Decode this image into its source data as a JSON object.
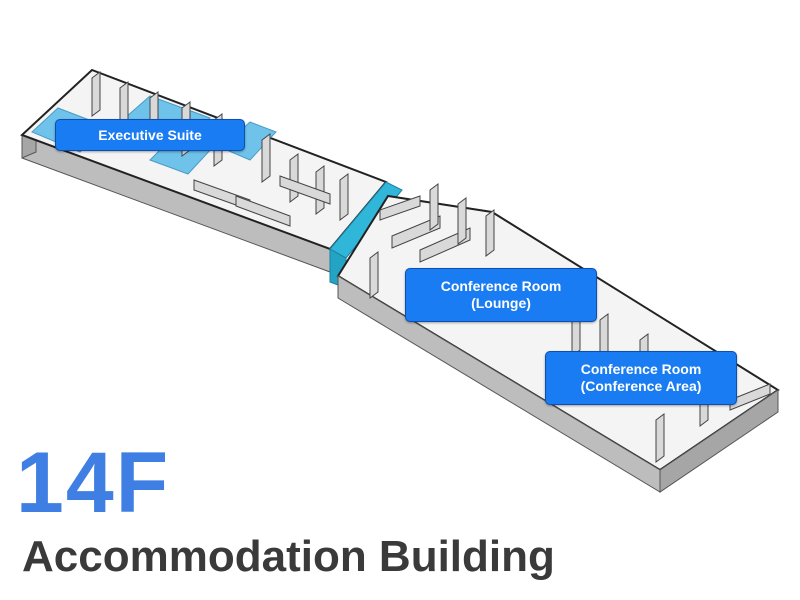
{
  "floor": {
    "number": "14F",
    "building": "Accommodation Building"
  },
  "rooms": {
    "executive_suite": {
      "label": "Executive Suite"
    },
    "lounge": {
      "line1": "Conference Room",
      "line2": "(Lounge)"
    },
    "conference_area": {
      "line1": "Conference Room",
      "line2": "(Conference Area)"
    }
  },
  "colors": {
    "label_background": "#1a7cf2",
    "floor_number": "#3f7fe3",
    "building_name": "#3a3a3a",
    "highlight_room": "#6fc3ea",
    "wall_top": "#e6e6e6",
    "wall_side": "#bdbdbd"
  }
}
